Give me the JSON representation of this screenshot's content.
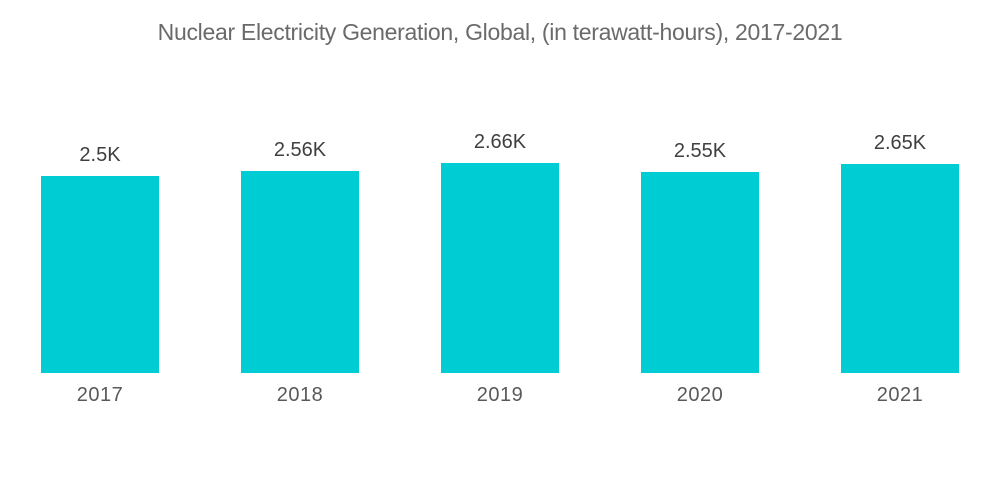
{
  "title": "Nuclear Electricity Generation, Global, (in terawatt-hours), 2017-2021",
  "colors": {
    "background": "#ffffff",
    "bar": "#00CCD3",
    "title_text": "#6a6a6a",
    "value_label_text": "#3f3f3f",
    "year_label_text": "#58595b"
  },
  "chart_data": {
    "type": "bar",
    "title": "Nuclear Electricity Generation, Global, (in terawatt-hours), 2017-2021",
    "categories": [
      "2017",
      "2018",
      "2019",
      "2020",
      "2021"
    ],
    "values": [
      2500,
      2560,
      2660,
      2550,
      2650
    ],
    "value_labels": [
      "2.5K",
      "2.56K",
      "2.66K",
      "2.55K",
      "2.65K"
    ],
    "xlabel": "",
    "ylabel": "",
    "ylim": [
      0,
      2660
    ],
    "grid": false,
    "legend": false,
    "data_labels_position": "above-bar",
    "category_labels_position": "below-bar"
  }
}
